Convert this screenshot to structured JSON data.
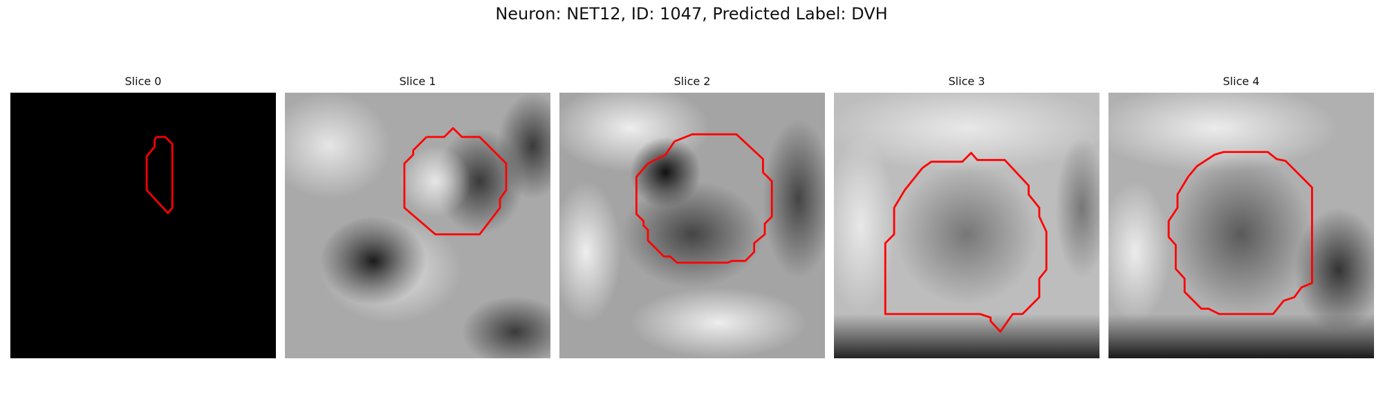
{
  "figure": {
    "title": "Neuron: NET12, ID: 1047, Predicted Label: DVH",
    "colors": {
      "contour": "#ff0000",
      "empty_slice": "#000000"
    }
  },
  "panels": [
    {
      "title": "Slice 0"
    },
    {
      "title": "Slice 1"
    },
    {
      "title": "Slice 2"
    },
    {
      "title": "Slice 3"
    },
    {
      "title": "Slice 4"
    }
  ]
}
